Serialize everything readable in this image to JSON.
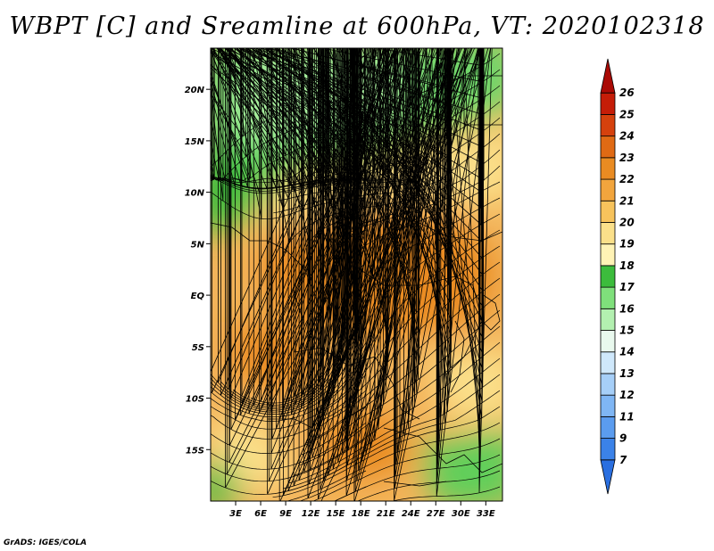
{
  "title": "WBPT [C] and Sreamline at 600hPa, VT: 2020102318",
  "credit": "GrADS: IGES/COLA",
  "map": {
    "lon_range": [
      0,
      35
    ],
    "lat_range": [
      -20,
      24
    ],
    "lat_ticks": [
      {
        "value": 20,
        "label": "20N"
      },
      {
        "value": 15,
        "label": "15N"
      },
      {
        "value": 10,
        "label": "10N"
      },
      {
        "value": 5,
        "label": "5N"
      },
      {
        "value": 0,
        "label": "EQ"
      },
      {
        "value": -5,
        "label": "5S"
      },
      {
        "value": -10,
        "label": "10S"
      },
      {
        "value": -15,
        "label": "15S"
      }
    ],
    "lon_ticks": [
      {
        "value": 3,
        "label": "3E"
      },
      {
        "value": 6,
        "label": "6E"
      },
      {
        "value": 9,
        "label": "9E"
      },
      {
        "value": 12,
        "label": "12E"
      },
      {
        "value": 15,
        "label": "15E"
      },
      {
        "value": 18,
        "label": "18E"
      },
      {
        "value": 21,
        "label": "21E"
      },
      {
        "value": 24,
        "label": "24E"
      },
      {
        "value": 27,
        "label": "27E"
      },
      {
        "value": 30,
        "label": "30E"
      },
      {
        "value": 33,
        "label": "33E"
      }
    ]
  },
  "colorbar": {
    "levels": [
      "7",
      "9",
      "11",
      "12",
      "13",
      "14",
      "15",
      "16",
      "17",
      "18",
      "19",
      "20",
      "21",
      "22",
      "23",
      "24",
      "25",
      "26"
    ],
    "colors": [
      "#2a6fe0",
      "#3b82e8",
      "#5b9cef",
      "#7fb6f4",
      "#a6cff8",
      "#cfe8fb",
      "#e9f9ee",
      "#b3f0b0",
      "#7fe07b",
      "#3cbc3c",
      "#fff3b5",
      "#fbe08a",
      "#f7c35c",
      "#f2a53d",
      "#e98b22",
      "#e06a14",
      "#d5410d",
      "#c51d08",
      "#aa0a05"
    ]
  }
}
